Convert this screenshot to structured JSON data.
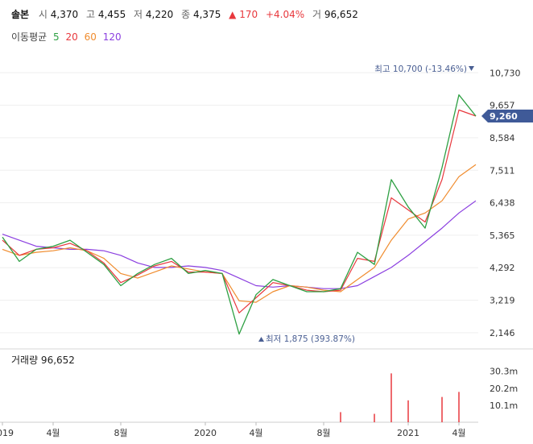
{
  "header": {
    "name": "솔본",
    "open_label": "시",
    "open": "4,370",
    "high_label": "고",
    "high": "4,455",
    "low_label": "저",
    "low": "4,220",
    "close_label": "종",
    "close": "4,375",
    "change": "▲ 170",
    "change_pct": "+4.04%",
    "volume_label": "거",
    "volume": "96,652"
  },
  "ma_legend": {
    "label": "이동평균",
    "items": [
      {
        "text": "5",
        "color": "#2ea043"
      },
      {
        "text": "20",
        "color": "#e8383d"
      },
      {
        "text": "60",
        "color": "#f08c2e"
      },
      {
        "text": "120",
        "color": "#8b3fe0"
      }
    ]
  },
  "annotations": {
    "high_text": "최고 10,700 (-13.46%)",
    "low_text": "최저 1,875 (393.87%)",
    "current_price": "9,260"
  },
  "volume_panel": {
    "title": "거래량 96,652",
    "ticks": [
      "30.3m",
      "20.2m",
      "10.1m"
    ]
  },
  "colors": {
    "up": "#e8383d",
    "down": "#2f6fd6",
    "ma5": "#2ea043",
    "ma20": "#e8383d",
    "ma60": "#f08c2e",
    "ma120": "#8b3fe0",
    "price_tag": "#3f5a98"
  },
  "chart_data": {
    "type": "line",
    "y_ticks": [
      "10,730",
      "9,657",
      "8,584",
      "7,511",
      "6,438",
      "5,365",
      "4,292",
      "3,219",
      "2,146"
    ],
    "y_tick_values": [
      10730,
      9657,
      8584,
      7511,
      6438,
      5365,
      4292,
      3219,
      2146
    ],
    "ylim": [
      1610,
      11270
    ],
    "x_ticks": [
      "2019",
      "4월",
      "8월",
      "2020",
      "4월",
      "8월",
      "2021",
      "4월"
    ],
    "x_tick_values": [
      "2019-01",
      "2019-04",
      "2019-08",
      "2020-01",
      "2020-04",
      "2020-08",
      "2021-01",
      "2021-04"
    ],
    "xlim": [
      "2019-01",
      "2021-05"
    ],
    "x": [
      "2019-01",
      "2019-02",
      "2019-03",
      "2019-04",
      "2019-05",
      "2019-06",
      "2019-07",
      "2019-08",
      "2019-09",
      "2019-10",
      "2019-11",
      "2019-12",
      "2020-01",
      "2020-02",
      "2020-03",
      "2020-04",
      "2020-05",
      "2020-06",
      "2020-07",
      "2020-08",
      "2020-09",
      "2020-10",
      "2020-11",
      "2020-12",
      "2021-01",
      "2021-02",
      "2021-03",
      "2021-04",
      "2021-05"
    ],
    "series": [
      {
        "values": [
          5300,
          4500,
          4900,
          5000,
          5200,
          4800,
          4400,
          3700,
          4100,
          4400,
          4600,
          4100,
          4200,
          4100,
          2100,
          3400,
          3900,
          3700,
          3500,
          3500,
          3600,
          4800,
          4400,
          7200,
          6300,
          5600,
          7600,
          10000,
          9300
        ]
      },
      {
        "values": [
          5200,
          4700,
          4900,
          4950,
          5100,
          4850,
          4450,
          3800,
          4050,
          4350,
          4500,
          4150,
          4150,
          4100,
          2800,
          3300,
          3800,
          3700,
          3550,
          3500,
          3550,
          4600,
          4500,
          6600,
          6200,
          5800,
          7200,
          9500,
          9300
        ]
      },
      {
        "values": [
          4900,
          4700,
          4800,
          4850,
          4950,
          4850,
          4600,
          4100,
          3950,
          4150,
          4350,
          4250,
          4150,
          4100,
          3200,
          3150,
          3500,
          3700,
          3650,
          3550,
          3500,
          3900,
          4300,
          5200,
          5900,
          6100,
          6500,
          7300,
          7700
        ]
      },
      {
        "values": [
          5400,
          5200,
          5000,
          4950,
          4900,
          4900,
          4850,
          4700,
          4450,
          4300,
          4300,
          4350,
          4300,
          4200,
          3950,
          3700,
          3650,
          3700,
          3650,
          3600,
          3600,
          3700,
          4000,
          4300,
          4700,
          5150,
          5600,
          6100,
          6500
        ]
      }
    ],
    "volume": {
      "unit": "m",
      "ylim": [
        0,
        33
      ],
      "x": [
        "2020-09",
        "2020-11",
        "2020-12",
        "2021-01",
        "2021-03",
        "2021-04"
      ],
      "values": [
        6,
        5,
        29,
        13,
        15,
        18
      ]
    },
    "grid": true
  }
}
